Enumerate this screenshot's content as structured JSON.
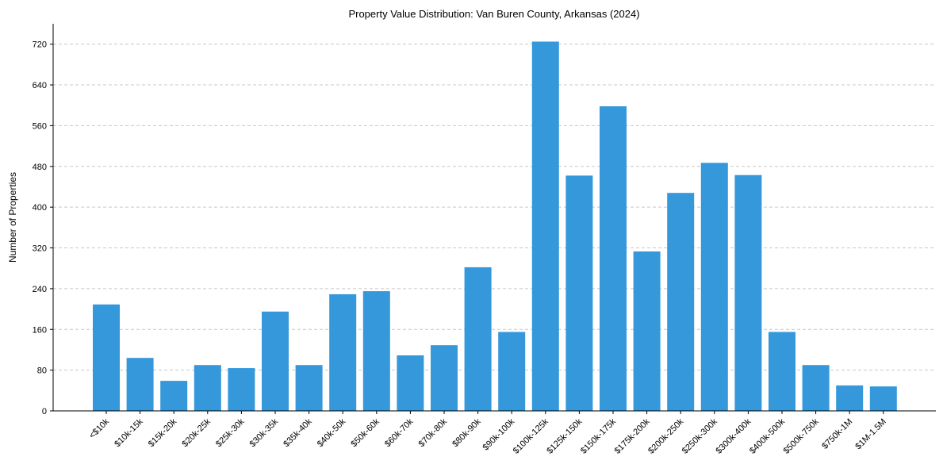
{
  "chart_data": {
    "type": "bar",
    "title": "Property Value Distribution: Van Buren County, Arkansas (2024)",
    "xlabel": "",
    "ylabel": "Number of Properties",
    "ylim": [
      0,
      760
    ],
    "yticks": [
      0,
      80,
      160,
      240,
      320,
      400,
      480,
      560,
      640,
      720
    ],
    "grid": "horizontal dashed",
    "color": "#3498db",
    "categories": [
      "<$10k",
      "$10k-15k",
      "$15k-20k",
      "$20k-25k",
      "$25k-30k",
      "$30k-35k",
      "$35k-40k",
      "$40k-50k",
      "$50k-60k",
      "$60k-70k",
      "$70k-80k",
      "$80k-90k",
      "$90k-100k",
      "$100k-125k",
      "$125k-150k",
      "$150k-175k",
      "$175k-200k",
      "$200k-250k",
      "$250k-300k",
      "$300k-400k",
      "$400k-500k",
      "$500k-750k",
      "$750k-1M",
      "$1M-1.5M"
    ],
    "values": [
      209,
      104,
      59,
      90,
      84,
      195,
      90,
      229,
      235,
      109,
      129,
      282,
      155,
      725,
      462,
      598,
      313,
      428,
      487,
      463,
      155,
      90,
      50,
      48
    ]
  }
}
